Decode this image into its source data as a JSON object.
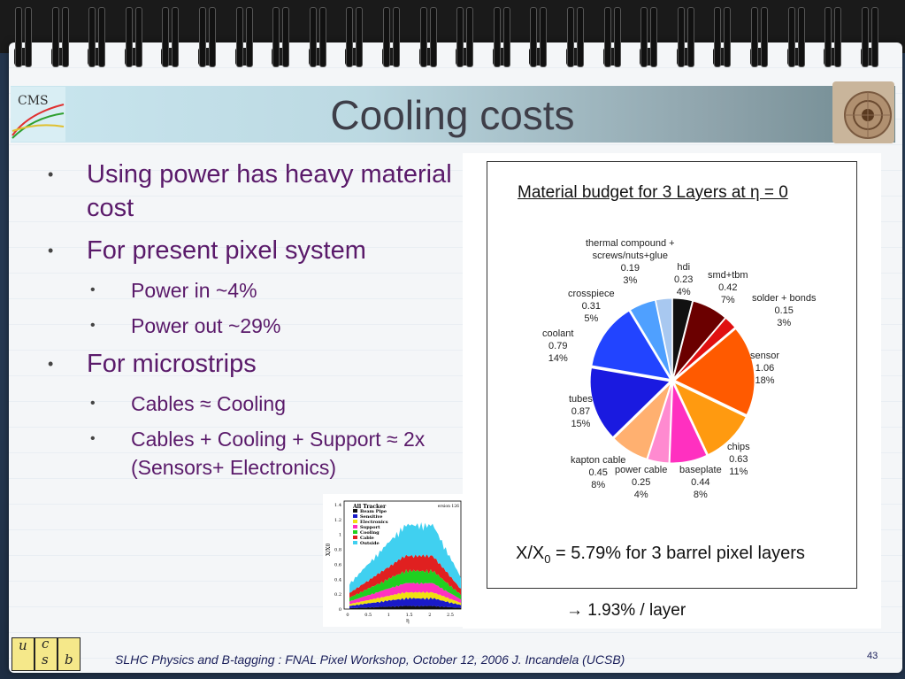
{
  "title": "Cooling costs",
  "bullets": [
    {
      "level": 1,
      "text": "Using power has heavy material cost"
    },
    {
      "level": 1,
      "text": "For present pixel system"
    },
    {
      "level": 2,
      "text": "Power in  ~4%"
    },
    {
      "level": 2,
      "text": "Power out ~29%"
    },
    {
      "level": 1,
      "text": "For microstrips"
    },
    {
      "level": 2,
      "text": "Cables ≈ Cooling"
    },
    {
      "level": 2,
      "text": "Cables + Cooling + Support ≈ 2x (Sensors+ Electronics)"
    }
  ],
  "pie_chart": {
    "title": "Material budget for 3 Layers at η = 0",
    "summary": "X/X0 = 5.79% for 3 barrel  pixel layers",
    "summary_parts": {
      "lead": "X/X",
      "sub": "0",
      "rest": " = 5.79% for 3 barrel  pixel layers"
    },
    "note": "→ 1.93% / layer"
  },
  "chart_data": {
    "type": "pie",
    "title": "Material budget for 3 Layers at η = 0",
    "slices": [
      {
        "name": "hdi",
        "value": 0.23,
        "percent": "4%",
        "color": "#111111"
      },
      {
        "name": "smd+tbm",
        "value": 0.42,
        "percent": "7%",
        "color": "#6b0000"
      },
      {
        "name": "solder + bonds",
        "value": 0.15,
        "percent": "3%",
        "color": "#e01010"
      },
      {
        "name": "sensor",
        "value": 1.06,
        "percent": "18%",
        "color": "#ff5a00"
      },
      {
        "name": "chips",
        "value": 0.63,
        "percent": "11%",
        "color": "#ff9a10"
      },
      {
        "name": "baseplate",
        "value": 0.44,
        "percent": "8%",
        "color": "#ff30c0"
      },
      {
        "name": "power cable",
        "value": 0.25,
        "percent": "4%",
        "color": "#ff8ad0"
      },
      {
        "name": "kapton cable",
        "value": 0.45,
        "percent": "8%",
        "color": "#ffb070"
      },
      {
        "name": "tubes",
        "value": 0.87,
        "percent": "15%",
        "color": "#1a1ae0"
      },
      {
        "name": "coolant",
        "value": 0.79,
        "percent": "14%",
        "color": "#2244ff"
      },
      {
        "name": "crosspiece",
        "value": 0.31,
        "percent": "5%",
        "color": "#4fa0ff"
      },
      {
        "name": "thermal compound + screws/nuts+glue",
        "value": 0.19,
        "percent": "3%",
        "color": "#a8c8f0"
      }
    ]
  },
  "mini_chart": {
    "title": "All Tracker",
    "corner_label": "ersion 126",
    "ylabel": "X/X0",
    "xlabel": "η",
    "legend": [
      {
        "name": "Beam Pipe",
        "color": "#111111"
      },
      {
        "name": "Sensitive",
        "color": "#1a1ac8"
      },
      {
        "name": "Electronics",
        "color": "#f0e010"
      },
      {
        "name": "Support",
        "color": "#ff30c0"
      },
      {
        "name": "Cooling",
        "color": "#20d020"
      },
      {
        "name": "Cable",
        "color": "#e02020"
      },
      {
        "name": "Outside",
        "color": "#40d0f0"
      }
    ],
    "yticks": [
      "1.4",
      "1.2",
      "1",
      "0.8",
      "0.6",
      "0.4",
      "0.2",
      "0"
    ],
    "xticks": [
      "0",
      "0.5",
      "1",
      "1.5",
      "2",
      "2.5"
    ]
  },
  "logo_left_text": "CMS",
  "ucsb_letters": [
    "u",
    "c",
    "s",
    "b"
  ],
  "footer": "SLHC Physics and B-tagging : FNAL Pixel Workshop, October 12, 2006   J. Incandela (UCSB)",
  "page_number": "43"
}
